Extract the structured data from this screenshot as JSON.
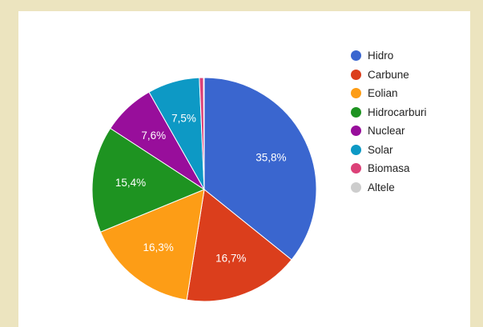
{
  "chart_data": {
    "type": "pie",
    "title": "",
    "slices": [
      {
        "label": "Hidro",
        "value": 35.8,
        "display": "35,8%",
        "color": "#3a66cf"
      },
      {
        "label": "Carbune",
        "value": 16.7,
        "display": "16,7%",
        "color": "#db3e1c"
      },
      {
        "label": "Eolian",
        "value": 16.3,
        "display": "16,3%",
        "color": "#fd9d16"
      },
      {
        "label": "Hidrocarburi",
        "value": 15.4,
        "display": "15,4%",
        "color": "#1e9321"
      },
      {
        "label": "Nuclear",
        "value": 7.6,
        "display": "7,6%",
        "color": "#980e9b"
      },
      {
        "label": "Solar",
        "value": 7.5,
        "display": "7,5%",
        "color": "#0d99c5"
      },
      {
        "label": "Biomasa",
        "value": 0.6,
        "display": "",
        "color": "#dc4178"
      },
      {
        "label": "Altele",
        "value": 0.1,
        "display": "",
        "color": "#cdcdcd"
      }
    ],
    "legend_position": "right"
  }
}
